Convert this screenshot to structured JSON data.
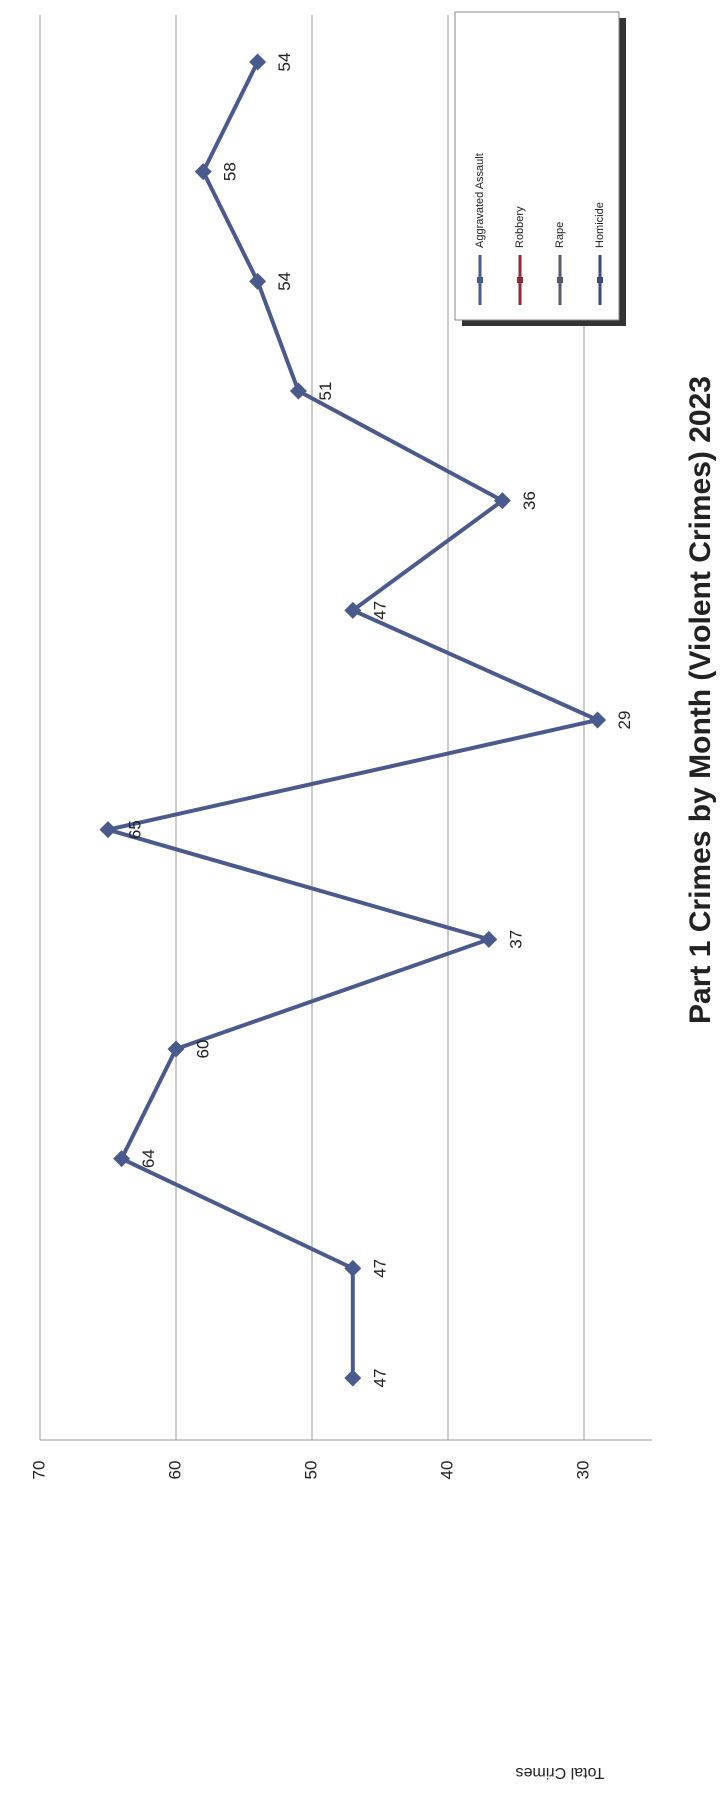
{
  "chart_data": {
    "type": "line",
    "title": "Part 1 Crimes by Month (Violent Crimes) 2023",
    "y_label": "Total Crimes",
    "categories": [
      null,
      null,
      null,
      null,
      null,
      null,
      null,
      null,
      null,
      null,
      null,
      null,
      null
    ],
    "series": [
      {
        "name": "Aggravated Assault",
        "color": "#4a5a8c",
        "values": [
          47,
          47,
          64,
          60,
          37,
          65,
          29,
          47,
          36,
          51,
          54,
          58,
          54
        ]
      },
      {
        "name": "Robbery",
        "color": "#8b2a3a"
      },
      {
        "name": "Rape",
        "color": "#555a66"
      },
      {
        "name": "Homicide",
        "color": "#3c4a78"
      }
    ],
    "ylim": [
      25,
      70
    ],
    "yticks": [
      30,
      40,
      50,
      60,
      70
    ],
    "grid": true
  }
}
